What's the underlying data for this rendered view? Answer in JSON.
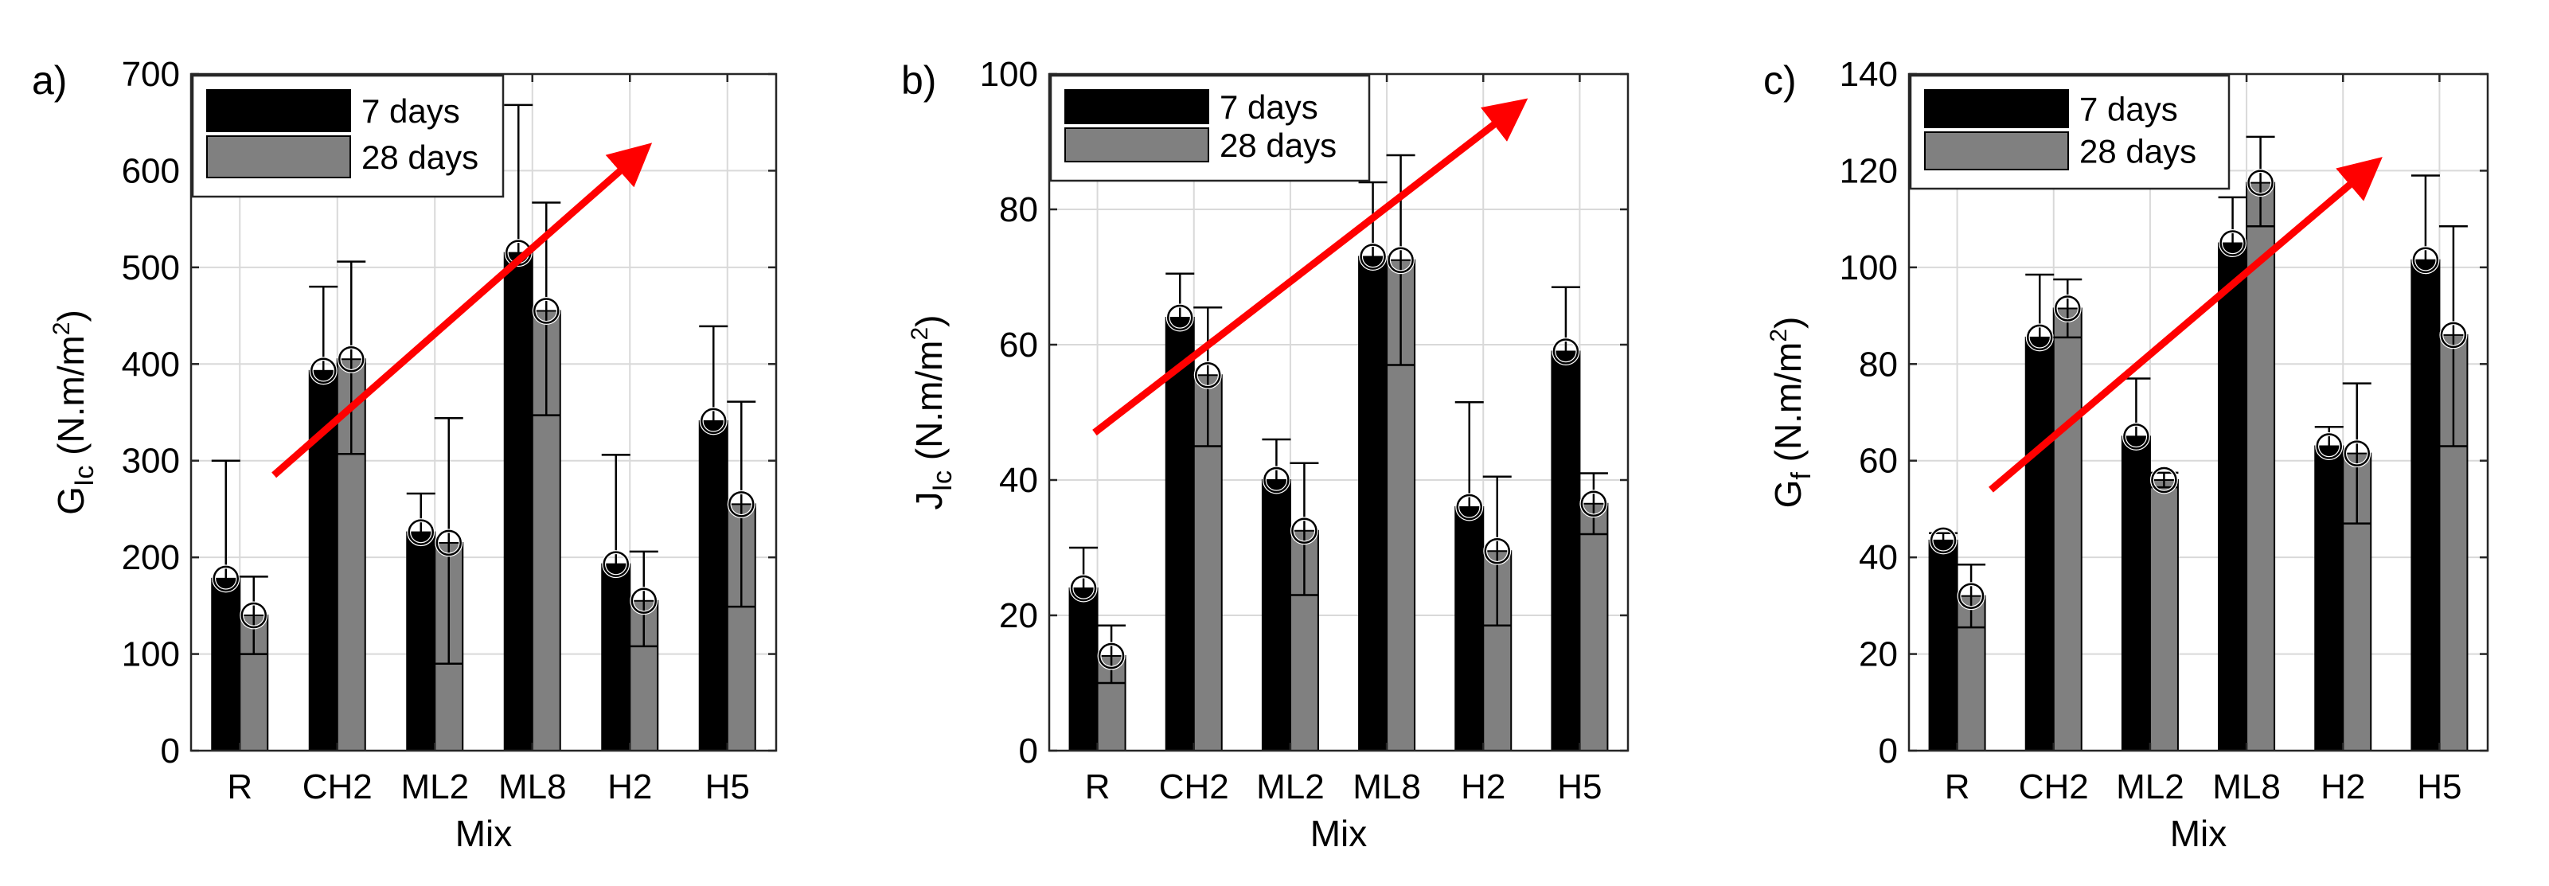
{
  "colors": {
    "series_7days": "#000000",
    "series_28days": "#808080",
    "trend_arrow": "#ff0000",
    "grid": "#d9d9d9"
  },
  "chart_data": [
    {
      "type": "bar",
      "panel_label": "a)",
      "ylabel_main": "G",
      "ylabel_sub": "Ic",
      "ylabel_units": " (N.m/m",
      "ylabel_sup": "2",
      "ylabel_close": ")",
      "xlabel": "Mix",
      "categories": [
        "R",
        "CH2",
        "ML2",
        "ML8",
        "H2",
        "H5"
      ],
      "ylim": [
        0,
        700
      ],
      "yticks": [
        0,
        100,
        200,
        300,
        400,
        500,
        600,
        700
      ],
      "series": [
        {
          "name": "7 days",
          "values": [
            178,
            393,
            226,
            515,
            193,
            341
          ],
          "err_high": [
            300,
            480,
            266,
            668,
            306,
            439
          ],
          "err_low": [
            178,
            393,
            226,
            515,
            193,
            341
          ]
        },
        {
          "name": "28 days",
          "values": [
            140,
            405,
            215,
            455,
            155,
            255
          ],
          "err_high": [
            180,
            506,
            344,
            567,
            206,
            361
          ],
          "err_low": [
            100,
            307,
            90,
            347,
            108,
            149
          ]
        }
      ],
      "grid": true,
      "legend_position": "top-left",
      "trend_arrow": {
        "from": [
          0.35,
          285
        ],
        "to": [
          4.15,
          622
        ]
      }
    },
    {
      "type": "bar",
      "panel_label": "b)",
      "ylabel_main": "J",
      "ylabel_sub": "Ic",
      "ylabel_units": " (N.m/m",
      "ylabel_sup": "2",
      "ylabel_close": ")",
      "xlabel": "Mix",
      "categories": [
        "R",
        "CH2",
        "ML2",
        "ML8",
        "H2",
        "H5"
      ],
      "ylim": [
        0,
        100
      ],
      "yticks": [
        0,
        20,
        40,
        60,
        80,
        100
      ],
      "series": [
        {
          "name": "7 days",
          "values": [
            24,
            64,
            40,
            73,
            36,
            59
          ],
          "err_high": [
            30,
            70.5,
            46,
            84,
            51.5,
            68.5
          ],
          "err_low": [
            24,
            64,
            40,
            73,
            36,
            59
          ]
        },
        {
          "name": "28 days",
          "values": [
            14,
            55.5,
            32.5,
            72.5,
            29.5,
            36.5
          ],
          "err_high": [
            18.5,
            65.5,
            42.5,
            88,
            40.5,
            41
          ],
          "err_low": [
            10,
            45,
            23,
            57,
            18.5,
            32
          ]
        }
      ],
      "grid": true,
      "legend_position": "top-left",
      "trend_arrow": {
        "from": [
          -0.03,
          47
        ],
        "to": [
          4.38,
          95.5
        ]
      }
    },
    {
      "type": "bar",
      "panel_label": "c)",
      "ylabel_main": "G",
      "ylabel_sub": "f",
      "ylabel_units": " (N.m/m",
      "ylabel_sup": "2",
      "ylabel_close": ")",
      "xlabel": "Mix",
      "categories": [
        "R",
        "CH2",
        "ML2",
        "ML8",
        "H2",
        "H5"
      ],
      "ylim": [
        0,
        140
      ],
      "yticks": [
        0,
        20,
        40,
        60,
        80,
        100,
        120,
        140
      ],
      "series": [
        {
          "name": "7 days",
          "values": [
            43.5,
            85.5,
            65,
            105,
            63,
            101.5
          ],
          "err_high": [
            45,
            98.5,
            77,
            114.5,
            67,
            119
          ],
          "err_low": [
            43.5,
            85.5,
            65,
            105,
            63,
            101.5
          ]
        },
        {
          "name": "28 days",
          "values": [
            32,
            91.5,
            56,
            117.5,
            61.5,
            86
          ],
          "err_high": [
            38.5,
            97.5,
            57.5,
            127,
            76,
            108.5
          ],
          "err_low": [
            25.5,
            85.5,
            54.5,
            108.5,
            47,
            63
          ]
        }
      ],
      "grid": true,
      "legend_position": "top-left",
      "trend_arrow": {
        "from": [
          0.35,
          54
        ],
        "to": [
          4.33,
          121.5
        ]
      }
    }
  ]
}
